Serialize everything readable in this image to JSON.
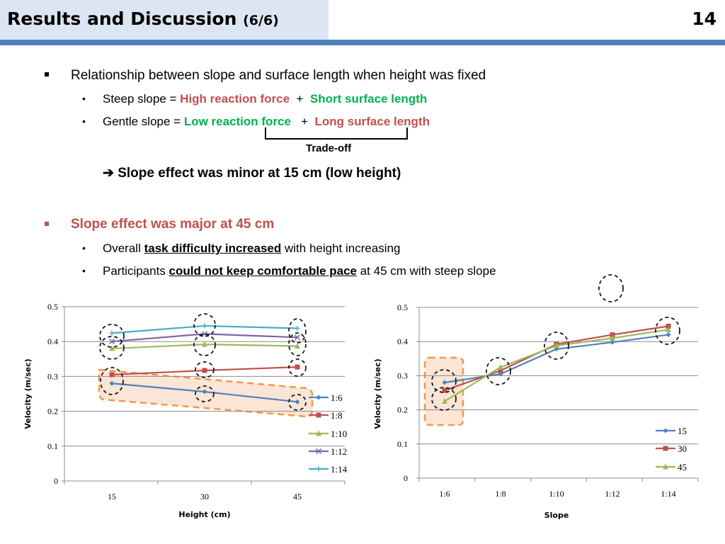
{
  "header": {
    "title": "Results and Discussion",
    "title_suffix": "(6/6)",
    "page_number": "14"
  },
  "content": {
    "bullet1": {
      "text": "Relationship between slope and surface length when height was fixed",
      "sub1": {
        "prefix": "Steep slope  = ",
        "part_a": "High reaction force",
        "plus": "+",
        "part_b": "Short surface length"
      },
      "sub2": {
        "prefix": "Gentle slope = ",
        "part_a": "Low reaction force",
        "plus": "+",
        "part_b": "Long surface length"
      },
      "bracket_label": "Trade-off",
      "conclusion_arrow": "➔",
      "conclusion": "Slope effect was minor at 15 cm (low height)"
    },
    "bullet2": {
      "text": "Slope effect was major at 45 cm",
      "sub1": {
        "prefix": "Overall ",
        "emph": "task difficulty increased",
        "suffix": " with height increasing"
      },
      "sub2": {
        "prefix": "Participants ",
        "emph": "could not keep comfortable pace",
        "suffix": " at 45 cm with steep slope"
      }
    },
    "colors": {
      "accent_red": "#c0504d",
      "accent_green": "#00b050",
      "header_bar": "#4f81bd",
      "header_bg": "#dce6f2"
    }
  },
  "chart_data": [
    {
      "type": "line",
      "title": "",
      "xlabel": "Height (cm)",
      "ylabel": "Velocity (m/sec)",
      "categories": [
        "15",
        "30",
        "45"
      ],
      "ylim": [
        0,
        0.5
      ],
      "yticks": [
        "0",
        "0.1",
        "0.2",
        "0.3",
        "0.4",
        "0.5"
      ],
      "grid": true,
      "legend": "right",
      "series": [
        {
          "name": "1:6",
          "color": "#4f81bd",
          "marker": "diamond",
          "values": [
            0.28,
            0.256,
            0.227
          ]
        },
        {
          "name": "1:8",
          "color": "#c0504d",
          "marker": "square",
          "values": [
            0.305,
            0.317,
            0.327
          ]
        },
        {
          "name": "1:10",
          "color": "#9bbb59",
          "marker": "triangle",
          "values": [
            0.38,
            0.392,
            0.387
          ]
        },
        {
          "name": "1:12",
          "color": "#8064a2",
          "marker": "x",
          "values": [
            0.4,
            0.422,
            0.412
          ]
        },
        {
          "name": "1:14",
          "color": "#4bacc6",
          "marker": "star",
          "values": [
            0.424,
            0.445,
            0.438
          ]
        }
      ],
      "annotations": [
        "dashed circles around each data group",
        "orange dashed highlight around 1:6 series"
      ]
    },
    {
      "type": "line",
      "title": "",
      "xlabel": "Slope",
      "ylabel": "Velocity (m/sec)",
      "categories": [
        "1:6",
        "1:8",
        "1:10",
        "1:12",
        "1:14"
      ],
      "ylim": [
        0,
        0.5
      ],
      "yticks": [
        "0",
        "0.1",
        "0.2",
        "0.3",
        "0.4",
        "0.5"
      ],
      "grid": true,
      "legend": "right",
      "series": [
        {
          "name": "15",
          "color": "#4f81bd",
          "marker": "diamond",
          "values": [
            0.28,
            0.305,
            0.378,
            0.398,
            0.42
          ]
        },
        {
          "name": "30",
          "color": "#c0504d",
          "marker": "square",
          "values": [
            0.257,
            0.315,
            0.392,
            0.42,
            0.445
          ]
        },
        {
          "name": "45",
          "color": "#9bbb59",
          "marker": "triangle",
          "values": [
            0.225,
            0.325,
            0.388,
            0.41,
            0.435
          ]
        }
      ],
      "annotations": [
        "dashed circles around each data group",
        "orange dashed highlight around 1:6 category"
      ]
    }
  ]
}
